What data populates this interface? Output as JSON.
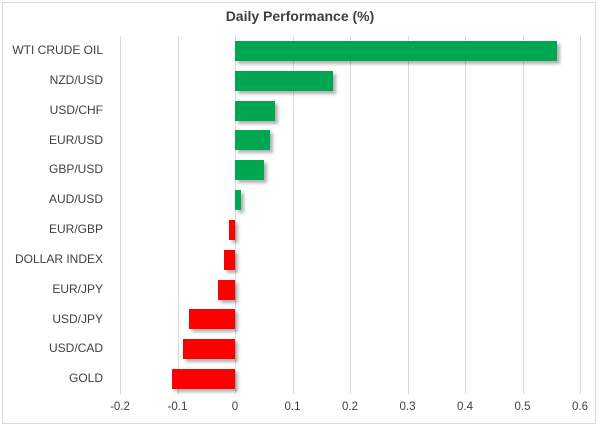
{
  "title": "Daily Performance (%)",
  "chart_data": {
    "type": "bar",
    "orientation": "horizontal",
    "title": "Daily Performance (%)",
    "xlabel": "",
    "ylabel": "",
    "categories": [
      "WTI CRUDE OIL",
      "NZD/USD",
      "USD/CHF",
      "EUR/USD",
      "GBP/USD",
      "AUD/USD",
      "EUR/GBP",
      "DOLLAR INDEX",
      "EUR/JPY",
      "USD/JPY",
      "USD/CAD",
      "GOLD"
    ],
    "values": [
      0.56,
      0.17,
      0.07,
      0.06,
      0.05,
      0.01,
      -0.01,
      -0.02,
      -0.03,
      -0.08,
      -0.09,
      -0.11
    ],
    "xlim": [
      -0.2,
      0.6
    ],
    "xticks": [
      -0.2,
      -0.1,
      0,
      0.1,
      0.2,
      0.3,
      0.4,
      0.5,
      0.6
    ],
    "xtick_labels": [
      "-0.2",
      "-0.1",
      "0",
      "0.1",
      "0.2",
      "0.3",
      "0.4",
      "0.5",
      "0.6"
    ],
    "grid": true,
    "legend": false,
    "positive_color": "#00a650",
    "negative_color": "#ff0000"
  },
  "colors": {
    "positive": "#00a650",
    "negative": "#ff0000",
    "gridline": "#d9d9d9",
    "frame": "#d9d9d9",
    "text": "#3f3f3f",
    "background": "#ffffff"
  }
}
